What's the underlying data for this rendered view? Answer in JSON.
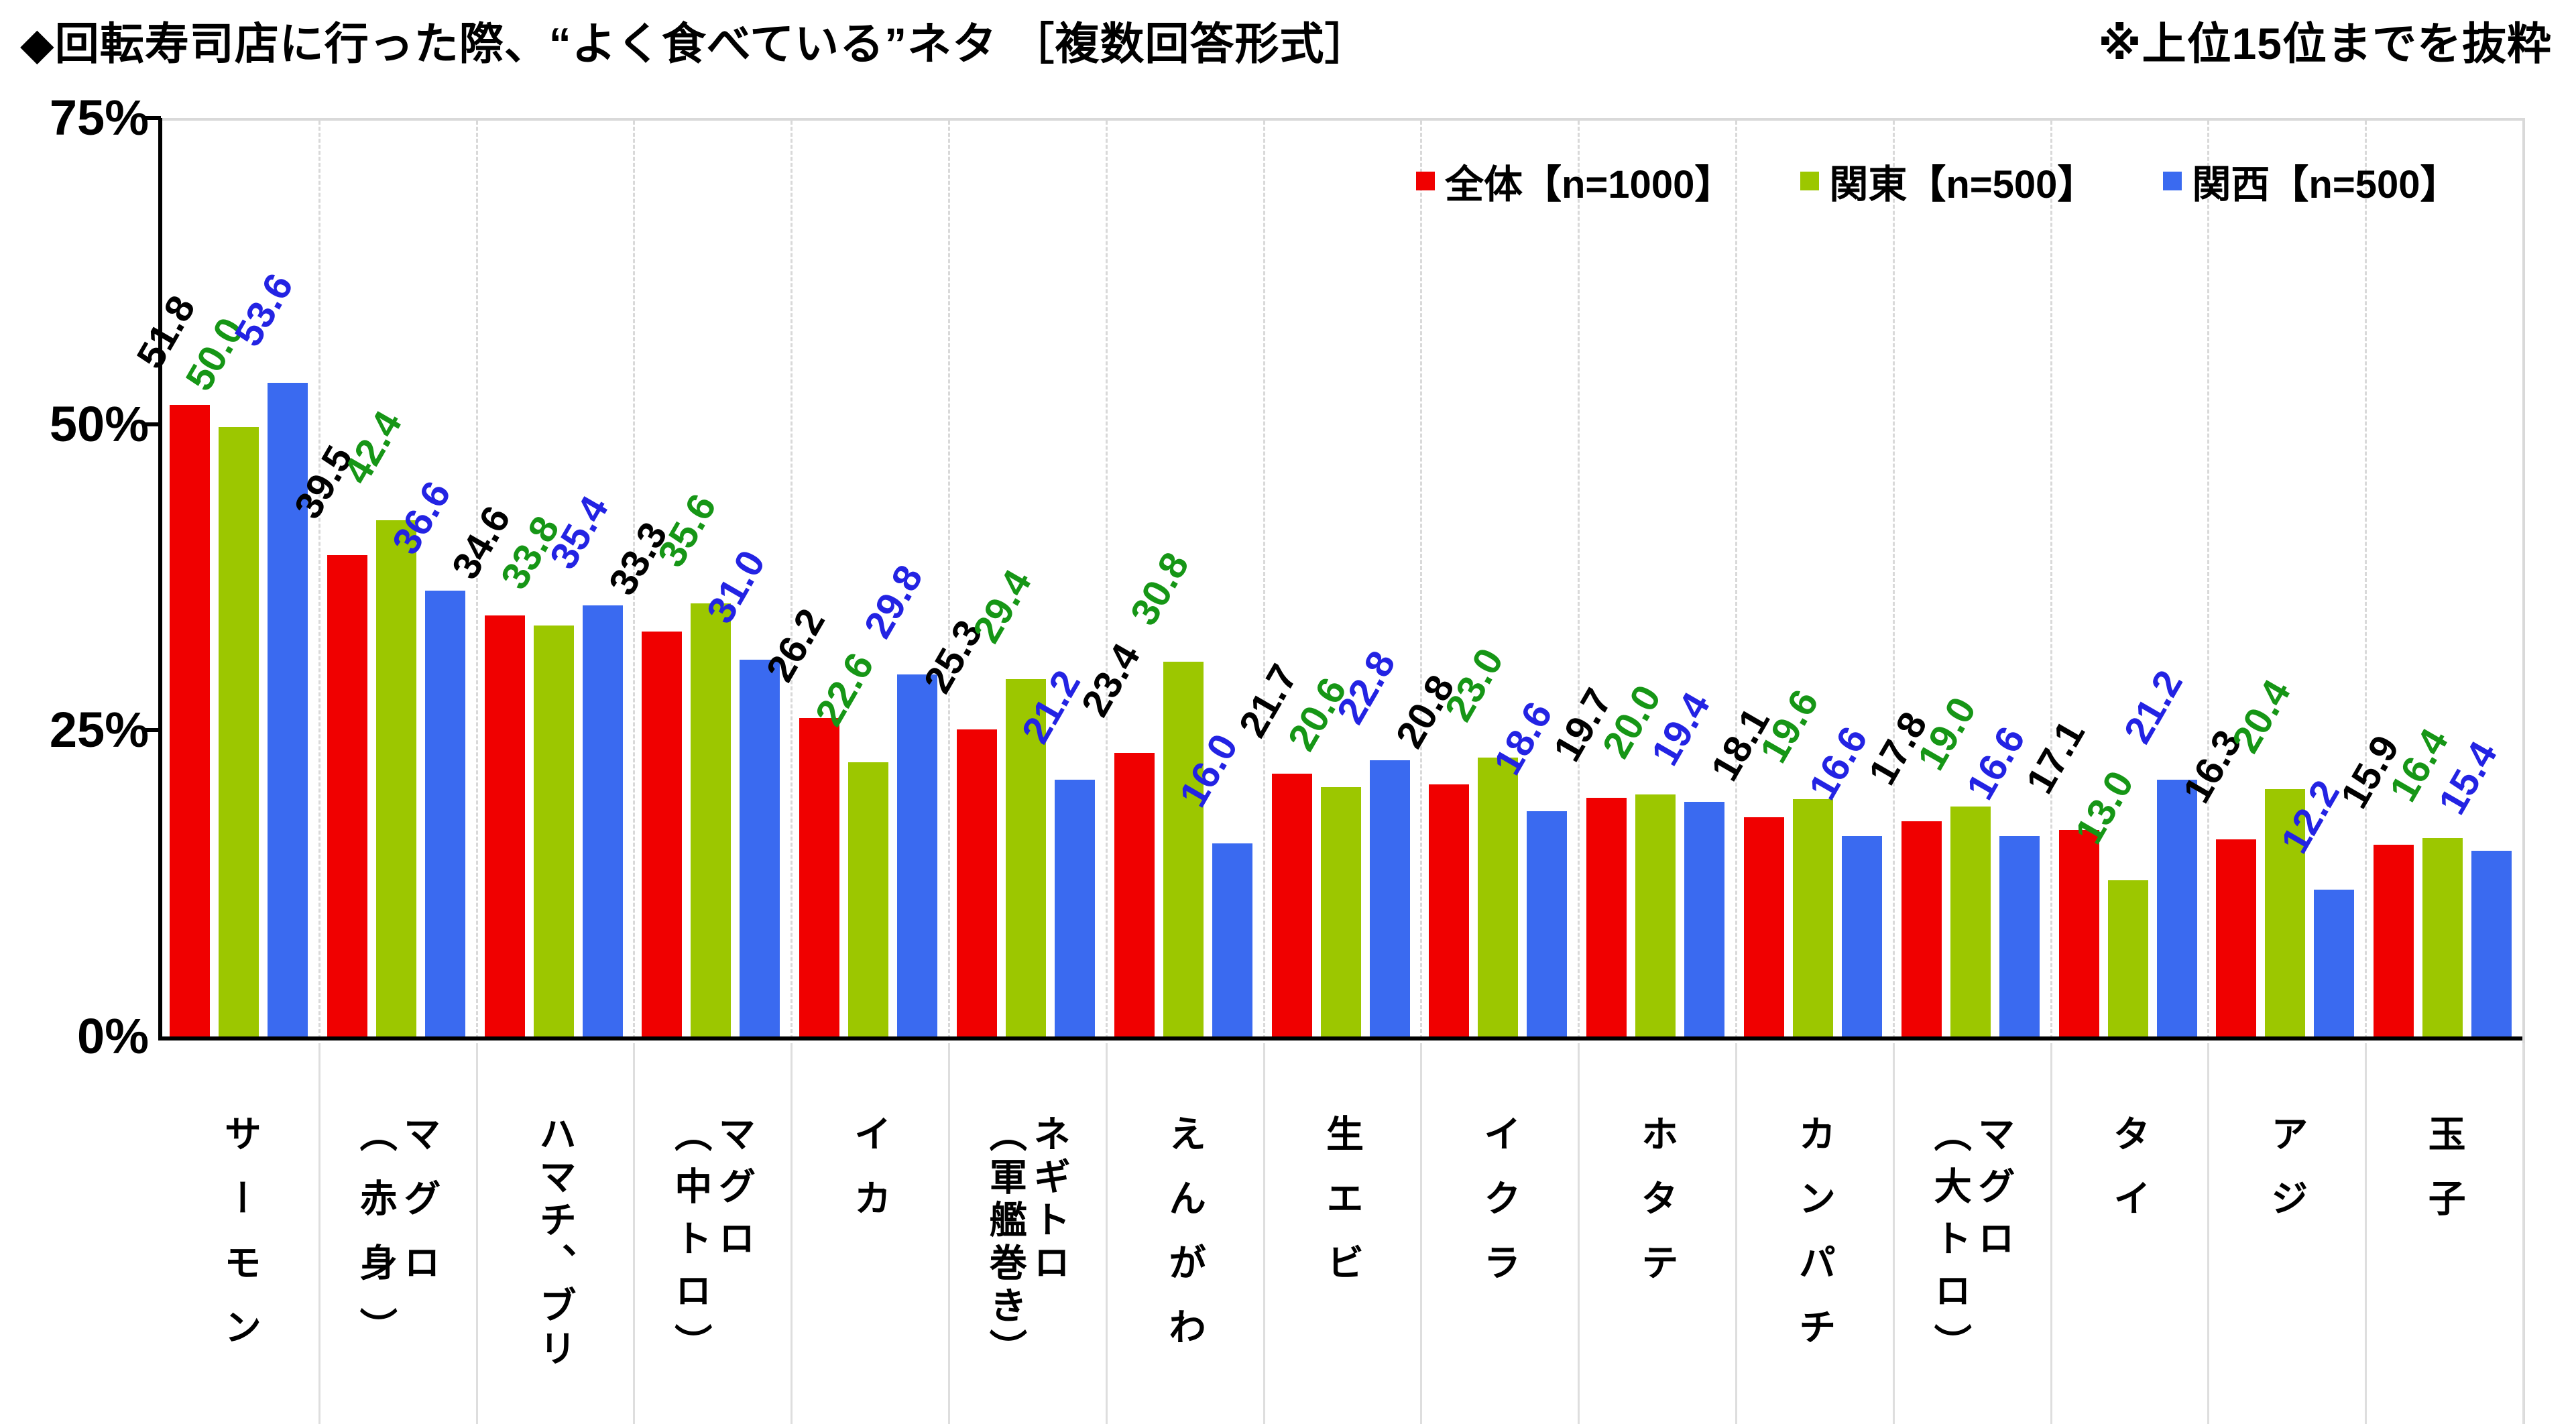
{
  "header": {
    "title": "◆回転寿司店に行った際、“よく食べている”ネタ ［複数回答形式］",
    "note": "※上位15位までを抜粋"
  },
  "y_axis": {
    "tick_labels": [
      "75%",
      "50%",
      "25%",
      "0%"
    ],
    "tick_values": [
      75,
      50,
      25,
      0
    ]
  },
  "chart_data": {
    "type": "bar",
    "title": "回転寿司店に行った際、よく食べているネタ（複数回答形式）",
    "ylim": [
      0,
      75
    ],
    "yticks": [
      0,
      25,
      50,
      75
    ],
    "grid": "vertical-dashed-group-separators",
    "legend_position": "top-right-inside",
    "categories": [
      "サーモン",
      "マグロ\n（赤身）",
      "ハマチ、ブリ",
      "マグロ\n（中トロ）",
      "イカ",
      "ネギトロ\n（軍艦巻き）",
      "えんがわ",
      "生エビ",
      "イクラ",
      "ホタテ",
      "カンパチ",
      "マグロ\n（大トロ）",
      "タイ",
      "アジ",
      "玉子"
    ],
    "series": [
      {
        "name": "全体【n=1000】",
        "bar_color": "#F00000",
        "label_color": "#000000",
        "values": [
          51.8,
          39.5,
          34.6,
          33.3,
          26.2,
          25.3,
          23.4,
          21.7,
          20.8,
          19.7,
          18.1,
          17.8,
          17.1,
          16.3,
          15.9
        ]
      },
      {
        "name": "関東【n=500】",
        "bar_color": "#9CC700",
        "label_color": "#169616",
        "values": [
          50.0,
          42.4,
          33.8,
          35.6,
          22.6,
          29.4,
          30.8,
          20.6,
          23.0,
          20.0,
          19.6,
          19.0,
          13.0,
          20.4,
          16.4
        ]
      },
      {
        "name": "関西【n=500】",
        "bar_color": "#3A6AF0",
        "label_color": "#2323E3",
        "values": [
          53.6,
          36.6,
          35.4,
          31.0,
          29.8,
          21.2,
          16.0,
          22.8,
          18.6,
          19.4,
          16.6,
          16.6,
          21.2,
          12.2,
          15.4
        ]
      }
    ]
  }
}
